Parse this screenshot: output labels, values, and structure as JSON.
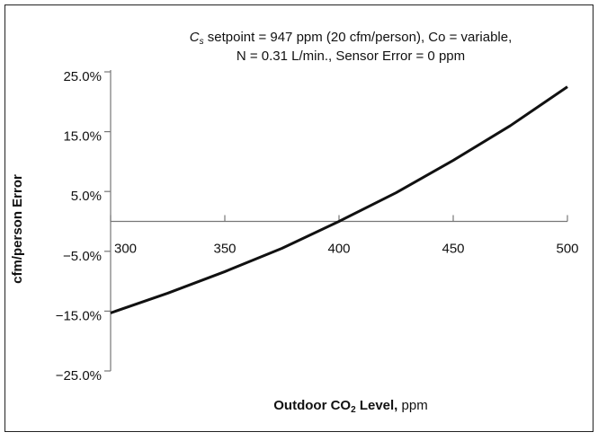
{
  "chart_data": {
    "type": "line",
    "title_symbol": "C",
    "title_subscript": "s",
    "title_line1": " setpoint = 947 ppm (20 cfm/person), Co = variable,",
    "title_line2": "N = 0.31 L/min., Sensor Error = 0 ppm",
    "xlabel_bold": "Outdoor CO",
    "xlabel_subscript": "2",
    "xlabel_bold_end": " Level,",
    "xlabel_unit": " ppm",
    "ylabel": "cfm/person Error",
    "x": [
      300,
      325,
      350,
      375,
      400,
      425,
      450,
      475,
      500
    ],
    "series": [
      {
        "color": "#111111",
        "values": [
          -15.3,
          -12,
          -8.4,
          -4.5,
          0,
          4.8,
          10.2,
          16,
          22.5
        ]
      }
    ],
    "xlim": [
      300,
      500
    ],
    "xticks": [
      300,
      350,
      400,
      450,
      500
    ],
    "ylim": [
      -25,
      25
    ],
    "yticks": [
      {
        "value": -25,
        "label": "−25.0%"
      },
      {
        "value": -15,
        "label": "−15.0%"
      },
      {
        "value": -5,
        "label": "−5.0%"
      },
      {
        "value": 5,
        "label": "5.0%"
      },
      {
        "value": 15,
        "label": "15.0%"
      },
      {
        "value": 25,
        "label": "25.0%"
      }
    ]
  }
}
